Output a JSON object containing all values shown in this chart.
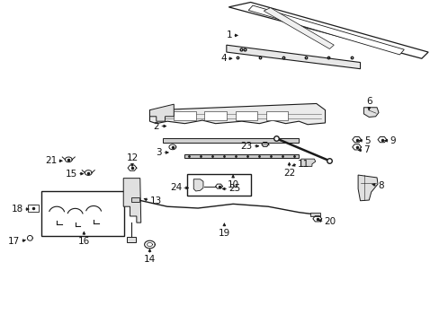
{
  "background_color": "#ffffff",
  "fig_width": 4.89,
  "fig_height": 3.6,
  "dpi": 100,
  "line_color": "#1a1a1a",
  "text_color": "#111111",
  "label_fontsize": 7.5,
  "labels": [
    {
      "text": "1",
      "xt": 0.548,
      "yt": 0.892,
      "xl": 0.528,
      "yl": 0.892
    },
    {
      "text": "4",
      "xt": 0.535,
      "yt": 0.82,
      "xl": 0.515,
      "yl": 0.82
    },
    {
      "text": "2",
      "xt": 0.385,
      "yt": 0.61,
      "xl": 0.362,
      "yl": 0.61
    },
    {
      "text": "3",
      "xt": 0.39,
      "yt": 0.528,
      "xl": 0.368,
      "yl": 0.528
    },
    {
      "text": "10",
      "xt": 0.53,
      "yt": 0.468,
      "xl": 0.53,
      "yl": 0.442
    },
    {
      "text": "11",
      "xt": 0.658,
      "yt": 0.483,
      "xl": 0.678,
      "yl": 0.493
    },
    {
      "text": "23",
      "xt": 0.596,
      "yt": 0.548,
      "xl": 0.574,
      "yl": 0.548
    },
    {
      "text": "22",
      "xt": 0.658,
      "yt": 0.507,
      "xl": 0.658,
      "yl": 0.478
    },
    {
      "text": "6",
      "xt": 0.84,
      "yt": 0.65,
      "xl": 0.84,
      "yl": 0.672
    },
    {
      "text": "5",
      "xt": 0.81,
      "yt": 0.565,
      "xl": 0.83,
      "yl": 0.565
    },
    {
      "text": "7",
      "xt": 0.808,
      "yt": 0.535,
      "xl": 0.828,
      "yl": 0.535
    },
    {
      "text": "9",
      "xt": 0.868,
      "yt": 0.565,
      "xl": 0.888,
      "yl": 0.565
    },
    {
      "text": "8",
      "xt": 0.84,
      "yt": 0.432,
      "xl": 0.86,
      "yl": 0.425
    },
    {
      "text": "12",
      "xt": 0.3,
      "yt": 0.475,
      "xl": 0.3,
      "yl": 0.498
    },
    {
      "text": "21",
      "xt": 0.148,
      "yt": 0.502,
      "xl": 0.128,
      "yl": 0.502
    },
    {
      "text": "15",
      "xt": 0.196,
      "yt": 0.462,
      "xl": 0.175,
      "yl": 0.462
    },
    {
      "text": "13",
      "xt": 0.32,
      "yt": 0.388,
      "xl": 0.34,
      "yl": 0.378
    },
    {
      "text": "18",
      "xt": 0.072,
      "yt": 0.352,
      "xl": 0.052,
      "yl": 0.352
    },
    {
      "text": "16",
      "xt": 0.19,
      "yt": 0.292,
      "xl": 0.19,
      "yl": 0.265
    },
    {
      "text": "17",
      "xt": 0.064,
      "yt": 0.258,
      "xl": 0.044,
      "yl": 0.252
    },
    {
      "text": "14",
      "xt": 0.34,
      "yt": 0.238,
      "xl": 0.34,
      "yl": 0.21
    },
    {
      "text": "19",
      "xt": 0.51,
      "yt": 0.318,
      "xl": 0.51,
      "yl": 0.292
    },
    {
      "text": "20",
      "xt": 0.718,
      "yt": 0.322,
      "xl": 0.738,
      "yl": 0.312
    },
    {
      "text": "24",
      "xt": 0.436,
      "yt": 0.418,
      "xl": 0.413,
      "yl": 0.418
    },
    {
      "text": "25",
      "xt": 0.498,
      "yt": 0.415,
      "xl": 0.52,
      "yl": 0.415
    }
  ]
}
